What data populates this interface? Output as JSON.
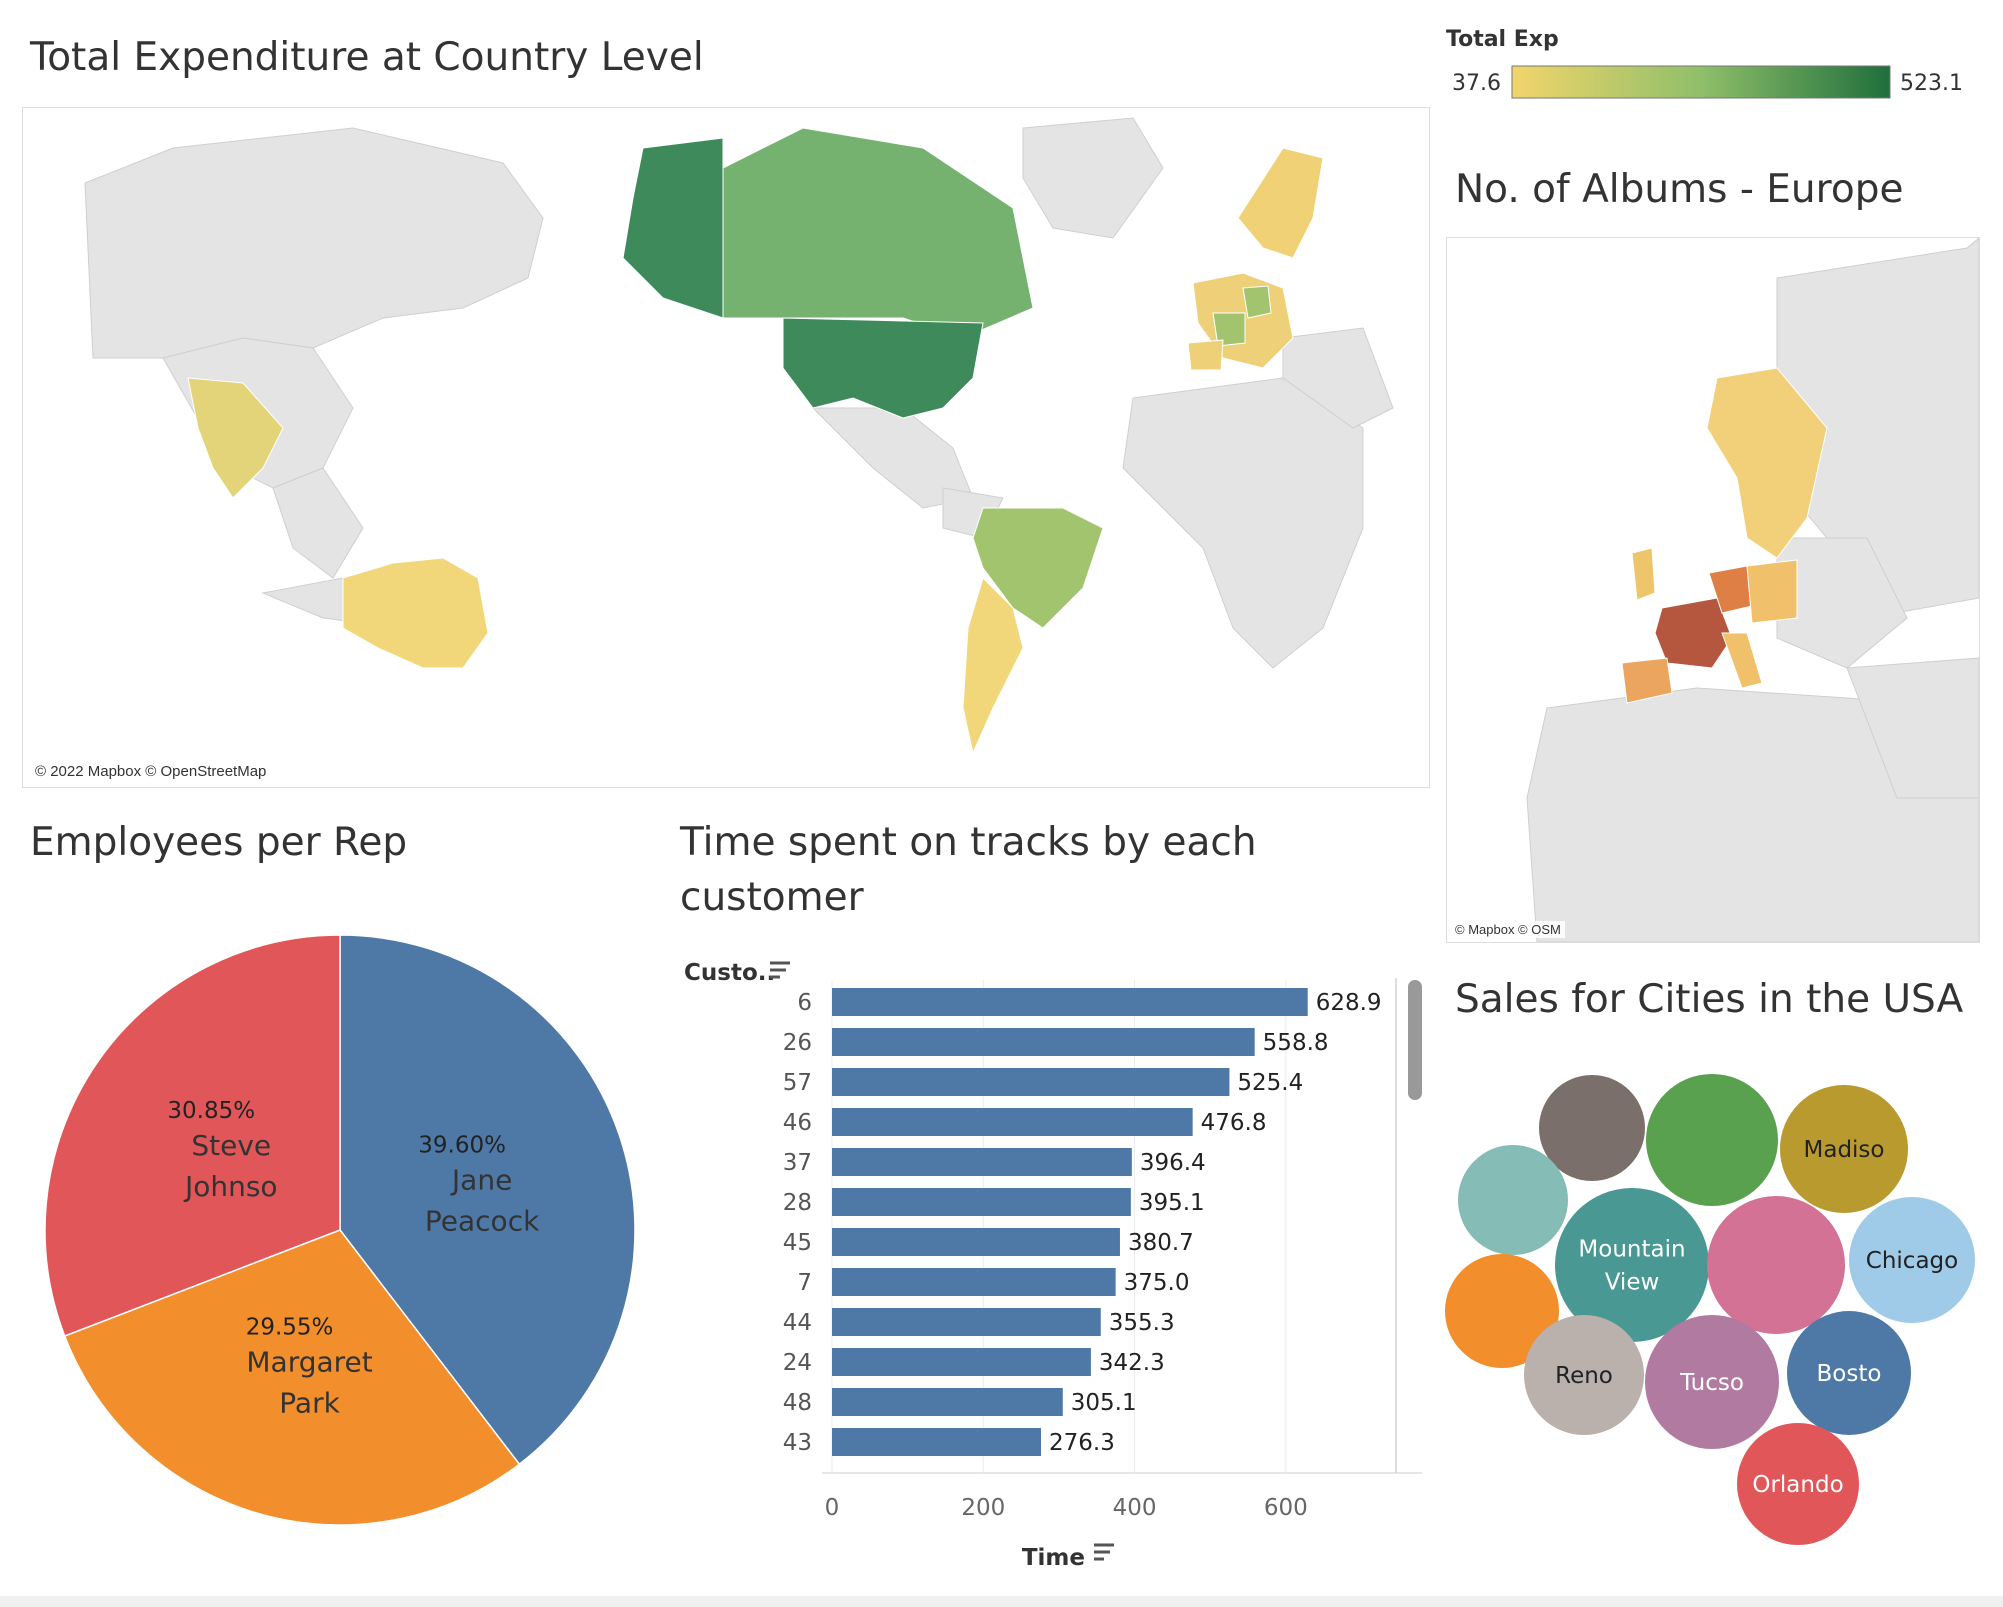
{
  "titles": {
    "world_map": "Total Expenditure at Country Level",
    "europe_map": "No. of Albums - Europe",
    "pie": "Employees per Rep",
    "bar": "Time spent on tracks by each customer",
    "bubbles": "Sales for Cities in the USA"
  },
  "legend": {
    "title": "Total Exp",
    "min_label": "37.6",
    "max_label": "523.1",
    "color_low": "#f2d56b",
    "color_high": "#1f6f3c"
  },
  "attribution": {
    "world": "© 2022 Mapbox © OpenStreetMap",
    "europe": "© Mapbox © OSM"
  },
  "pie_chart": {
    "type": "pie",
    "slices": [
      {
        "name_lines": [
          "Jane",
          "Peacock"
        ],
        "pct_label": "39.60%",
        "value": 39.6,
        "color": "#4e79a7"
      },
      {
        "name_lines": [
          "Margaret",
          "Park"
        ],
        "pct_label": "29.55%",
        "value": 29.55,
        "color": "#f28e2b"
      },
      {
        "name_lines": [
          "Steve",
          "Johnso"
        ],
        "pct_label": "30.85%",
        "value": 30.85,
        "color": "#e15759"
      }
    ]
  },
  "chart_data": {
    "type": "bar",
    "orientation": "horizontal",
    "y_header": "Custo..",
    "xlabel": "Time",
    "categories": [
      "6",
      "26",
      "57",
      "46",
      "37",
      "28",
      "45",
      "7",
      "44",
      "24",
      "48",
      "43"
    ],
    "values": [
      628.9,
      558.8,
      525.4,
      476.8,
      396.4,
      395.1,
      380.7,
      375.0,
      355.3,
      342.3,
      305.1,
      276.3
    ],
    "value_labels": [
      "628.9",
      "558.8",
      "525.4",
      "476.8",
      "396.4",
      "395.1",
      "380.7",
      "375.0",
      "355.3",
      "342.3",
      "305.1",
      "276.3"
    ],
    "xticks": [
      0,
      200,
      400,
      600
    ],
    "xtick_labels": [
      "0",
      "200",
      "400",
      "600"
    ],
    "xlim": [
      0,
      780
    ],
    "bar_color": "#4e79a7",
    "grid": true
  },
  "bubbles": [
    {
      "label_lines": [],
      "color": "#7b6f6c"
    },
    {
      "label_lines": [],
      "color": "#59a14f"
    },
    {
      "label_lines": [
        "Madiso"
      ],
      "color": "#b99a2e"
    },
    {
      "label_lines": [],
      "color": "#86bcb6"
    },
    {
      "label_lines": [
        "Mountain",
        "View"
      ],
      "color": "#499894"
    },
    {
      "label_lines": [],
      "color": "#d37295"
    },
    {
      "label_lines": [
        "Chicago"
      ],
      "color": "#a0cbe8"
    },
    {
      "label_lines": [],
      "color": "#f28e2b"
    },
    {
      "label_lines": [
        "Reno"
      ],
      "color": "#bab0ac"
    },
    {
      "label_lines": [
        "Tucso"
      ],
      "color": "#b07aa1"
    },
    {
      "label_lines": [
        "Bosto"
      ],
      "color": "#4e79a7"
    },
    {
      "label_lines": [
        "Orlando"
      ],
      "color": "#e15759"
    }
  ]
}
